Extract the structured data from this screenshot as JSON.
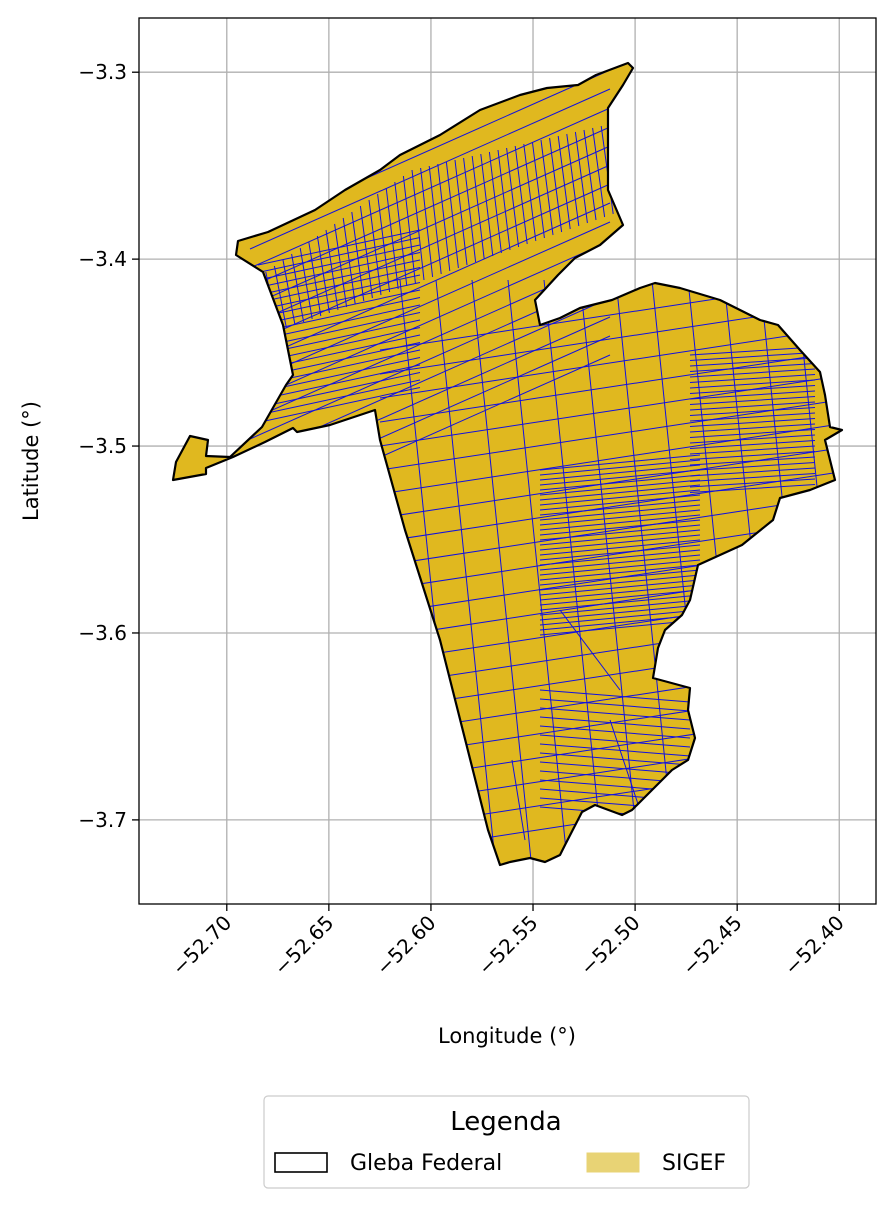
{
  "chart_data": {
    "type": "map",
    "xlabel": "Longitude (°)",
    "ylabel": "Latitude (°)",
    "xlim": [
      -52.743,
      -52.382
    ],
    "ylim": [
      -3.745,
      -3.271
    ],
    "grid": true,
    "x_ticks": [
      {
        "value": -52.7,
        "label": "−52.70"
      },
      {
        "value": -52.65,
        "label": "−52.65"
      },
      {
        "value": -52.6,
        "label": "−52.60"
      },
      {
        "value": -52.55,
        "label": "−52.55"
      },
      {
        "value": -52.5,
        "label": "−52.50"
      },
      {
        "value": -52.45,
        "label": "−52.45"
      },
      {
        "value": -52.4,
        "label": "−52.40"
      }
    ],
    "y_ticks": [
      {
        "value": -3.3,
        "label": "−3.3"
      },
      {
        "value": -3.4,
        "label": "−3.4"
      },
      {
        "value": -3.5,
        "label": "−3.5"
      },
      {
        "value": -3.6,
        "label": "−3.6"
      },
      {
        "value": -3.7,
        "label": "−3.7"
      }
    ],
    "layers": [
      {
        "name": "Gleba Federal",
        "fill": "none",
        "edge_color": "#000000"
      },
      {
        "name": "SIGEF",
        "fill": "#e0b81f",
        "edge_color": "#1010e0"
      }
    ],
    "legend": {
      "title": "Legenda",
      "placement": "below",
      "entries": [
        {
          "label": "Gleba Federal",
          "swatch_fill": "#ffffff",
          "swatch_edge": "#000000"
        },
        {
          "label": "SIGEF",
          "swatch_fill": "#e8d375",
          "swatch_edge": "#e8d375"
        }
      ]
    }
  }
}
